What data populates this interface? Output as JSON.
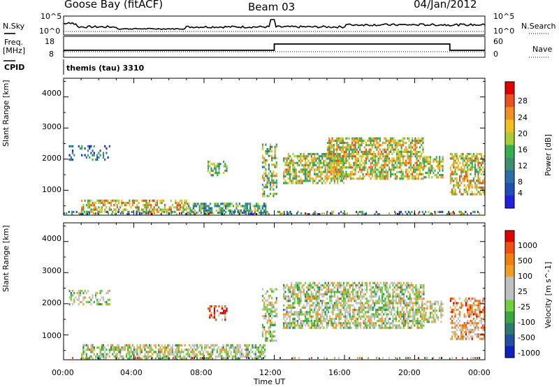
{
  "header": {
    "station": "Goose Bay (fitACF)",
    "beam": "Beam 03",
    "date": "04/Jan/2012"
  },
  "ts_panels": {
    "nsky_label": "N.Sky",
    "nsky_ticks": [
      "10^5",
      "10^0"
    ],
    "nsearch_label": "N.Search",
    "nsearch_ticks": [
      "10^5",
      "10^0"
    ],
    "freq_label": "Freq.",
    "freq_unit": "[MHz]",
    "freq_ticks": [
      "18",
      "8"
    ],
    "nave_label": "Nave",
    "nave_ticks": [
      "60",
      "0"
    ],
    "cpid_label": "CPID",
    "cpid_value": "themis (tau) 3310"
  },
  "chart_data": [
    {
      "type": "heatmap",
      "name": "power",
      "ylabel": "Slant Range [km]",
      "ylim": [
        200,
        4600
      ],
      "yticks": [
        "1000",
        "2000",
        "3000",
        "4000"
      ],
      "x_start": "00:00",
      "x_end": "00:00",
      "colorbar": {
        "label": "Power [dB]",
        "ticks": [
          "28",
          "24",
          "20",
          "16",
          "12",
          "8",
          "4"
        ],
        "colors": [
          "#2020e0",
          "#1f4fb5",
          "#2a6ea8",
          "#3f8f6f",
          "#34b050",
          "#a8cc3a",
          "#f0c020",
          "#f09020",
          "#e85020",
          "#e00000"
        ]
      },
      "regions": [
        {
          "t": [
            0.3,
            2.6
          ],
          "r": [
            1950,
            2450
          ],
          "level": 0.25,
          "density": 0.3
        },
        {
          "t": [
            1.0,
            7.0
          ],
          "r": [
            300,
            700
          ],
          "level": 0.65,
          "density": 0.55
        },
        {
          "t": [
            7.0,
            11.5
          ],
          "r": [
            250,
            600
          ],
          "level": 0.4,
          "density": 0.6
        },
        {
          "t": [
            8.2,
            9.3
          ],
          "r": [
            1450,
            1950
          ],
          "level": 0.45,
          "density": 0.5
        },
        {
          "t": [
            11.3,
            12.1
          ],
          "r": [
            800,
            2500
          ],
          "level": 0.5,
          "density": 0.5
        },
        {
          "t": [
            12.5,
            16.0
          ],
          "r": [
            1200,
            2200
          ],
          "level": 0.55,
          "density": 0.65
        },
        {
          "t": [
            15.0,
            20.5
          ],
          "r": [
            1400,
            2700
          ],
          "level": 0.6,
          "density": 0.65
        },
        {
          "t": [
            20.5,
            21.6
          ],
          "r": [
            1400,
            2100
          ],
          "level": 0.55,
          "density": 0.6
        },
        {
          "t": [
            22.0,
            24.0
          ],
          "r": [
            900,
            2200
          ],
          "level": 0.6,
          "density": 0.6
        },
        {
          "t": [
            0.0,
            24.0
          ],
          "r": [
            200,
            340
          ],
          "level": 0.3,
          "density": 0.25
        }
      ]
    },
    {
      "type": "heatmap",
      "name": "velocity",
      "ylabel": "Slant Range [km]",
      "ylim": [
        200,
        4600
      ],
      "yticks": [
        "1000",
        "2000",
        "3000",
        "4000"
      ],
      "xlabel": "Time UT",
      "xticks": [
        "00:00",
        "04:00",
        "08:00",
        "12:00",
        "16:00",
        "20:00",
        "00:00"
      ],
      "colorbar": {
        "label": "Velocity [m s^-1]",
        "ticks": [
          "1000",
          "500",
          "100",
          "25",
          "-25",
          "-100",
          "-500",
          "-1000"
        ],
        "colors": [
          "#1020c0",
          "#2050a0",
          "#2e7a70",
          "#3aa840",
          "#70d040",
          "#c0c0c0",
          "#c0c0c0",
          "#f0a020",
          "#f08010",
          "#f05010",
          "#e00000"
        ]
      },
      "regions": [
        {
          "t": [
            0.3,
            2.6
          ],
          "r": [
            1950,
            2450
          ],
          "level": 0.5,
          "density": 0.35
        },
        {
          "t": [
            1.0,
            11.5
          ],
          "r": [
            250,
            700
          ],
          "level": 0.5,
          "density": 0.6
        },
        {
          "t": [
            8.2,
            9.3
          ],
          "r": [
            1450,
            1950
          ],
          "level": 0.8,
          "density": 0.45
        },
        {
          "t": [
            11.3,
            12.1
          ],
          "r": [
            800,
            2500
          ],
          "level": 0.5,
          "density": 0.5
        },
        {
          "t": [
            12.5,
            20.5
          ],
          "r": [
            1200,
            2700
          ],
          "level": 0.5,
          "density": 0.65
        },
        {
          "t": [
            20.5,
            21.6
          ],
          "r": [
            1400,
            2100
          ],
          "level": 0.55,
          "density": 0.6
        },
        {
          "t": [
            22.0,
            24.0
          ],
          "r": [
            900,
            2200
          ],
          "level": 0.7,
          "density": 0.55
        }
      ]
    }
  ]
}
